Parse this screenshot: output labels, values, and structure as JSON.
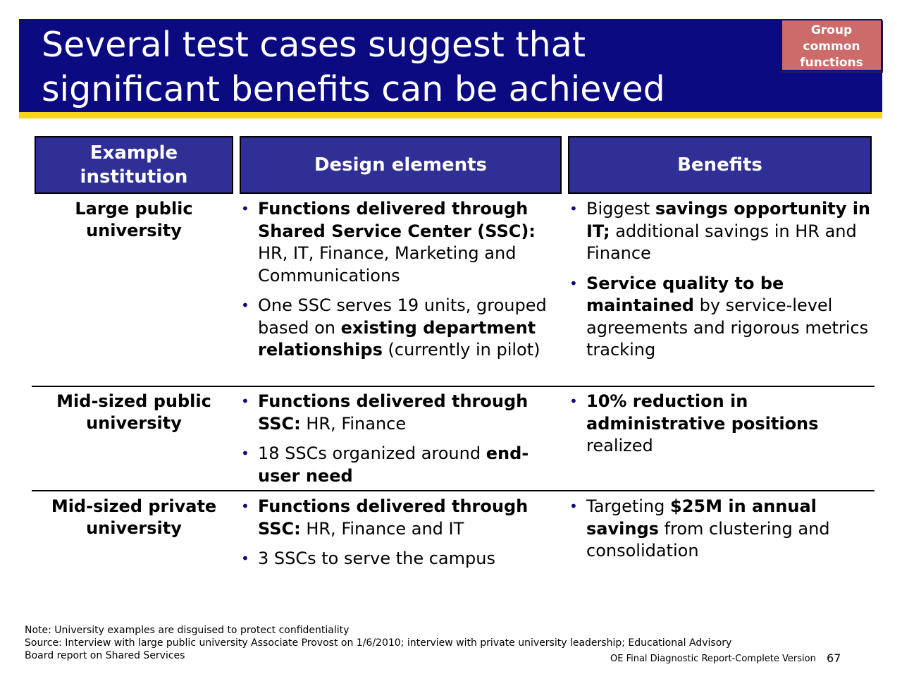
{
  "slide": {
    "title": "Several test cases suggest that\nsignificant benefits can be achieved",
    "tag_lines": [
      "Group",
      "common",
      "functions"
    ]
  },
  "table": {
    "headers": [
      "Example\ninstitution",
      "Design elements",
      "Benefits"
    ],
    "rows": [
      {
        "institution": "Large public university",
        "design": [
          [
            {
              "t": "Functions delivered through Shared Service Center (SSC):",
              "b": true
            },
            {
              "t": " HR, IT, Finance, Marketing and Communications",
              "b": false
            }
          ],
          [
            {
              "t": "One SSC serves 19 units, grouped based on ",
              "b": false
            },
            {
              "t": "existing department relationships",
              "b": true
            },
            {
              "t": " (currently in pilot)",
              "b": false
            }
          ]
        ],
        "benefits": [
          [
            {
              "t": "Biggest ",
              "b": false
            },
            {
              "t": "savings opportunity in IT;",
              "b": true
            },
            {
              "t": " additional savings in HR and Finance",
              "b": false
            }
          ],
          [
            {
              "t": "Service quality to be maintained",
              "b": true
            },
            {
              "t": " by service-level agreements and rigorous metrics tracking",
              "b": false
            }
          ]
        ]
      },
      {
        "institution": "Mid-sized public university",
        "design": [
          [
            {
              "t": "Functions delivered through SSC:",
              "b": true
            },
            {
              "t": " HR, Finance",
              "b": false
            }
          ],
          [
            {
              "t": "18 SSCs organized around ",
              "b": false
            },
            {
              "t": "end-user need",
              "b": true
            }
          ]
        ],
        "benefits": [
          [
            {
              "t": "10% reduction in administrative positions",
              "b": true
            },
            {
              "t": " realized",
              "b": false
            }
          ]
        ]
      },
      {
        "institution": "Mid-sized private university",
        "design": [
          [
            {
              "t": "Functions delivered through SSC:",
              "b": true
            },
            {
              "t": " HR, Finance and IT",
              "b": false
            }
          ],
          [
            {
              "t": "3 SSCs to serve the campus",
              "b": false
            }
          ]
        ],
        "benefits": [
          [
            {
              "t": "Targeting ",
              "b": false
            },
            {
              "t": "$25M in annual savings",
              "b": true
            },
            {
              "t": " from clustering and consolidation",
              "b": false
            }
          ]
        ]
      }
    ]
  },
  "footer": {
    "note": "Note: University examples are disguised to protect confidentiality",
    "source": "Source: Interview with large public university Associate Provost on 1/6/2010; interview with private university leadership; Educational Advisory Board report on Shared Services",
    "report_name": "OE Final Diagnostic Report-Complete Version",
    "page_number": "67"
  },
  "colors": {
    "title_bar": "#0b0a80",
    "accent_stripe": "#f5d61d",
    "header_fill": "#2f2f96",
    "tag_fill": "#cd6a6a",
    "bullet": "#0b0a80"
  }
}
